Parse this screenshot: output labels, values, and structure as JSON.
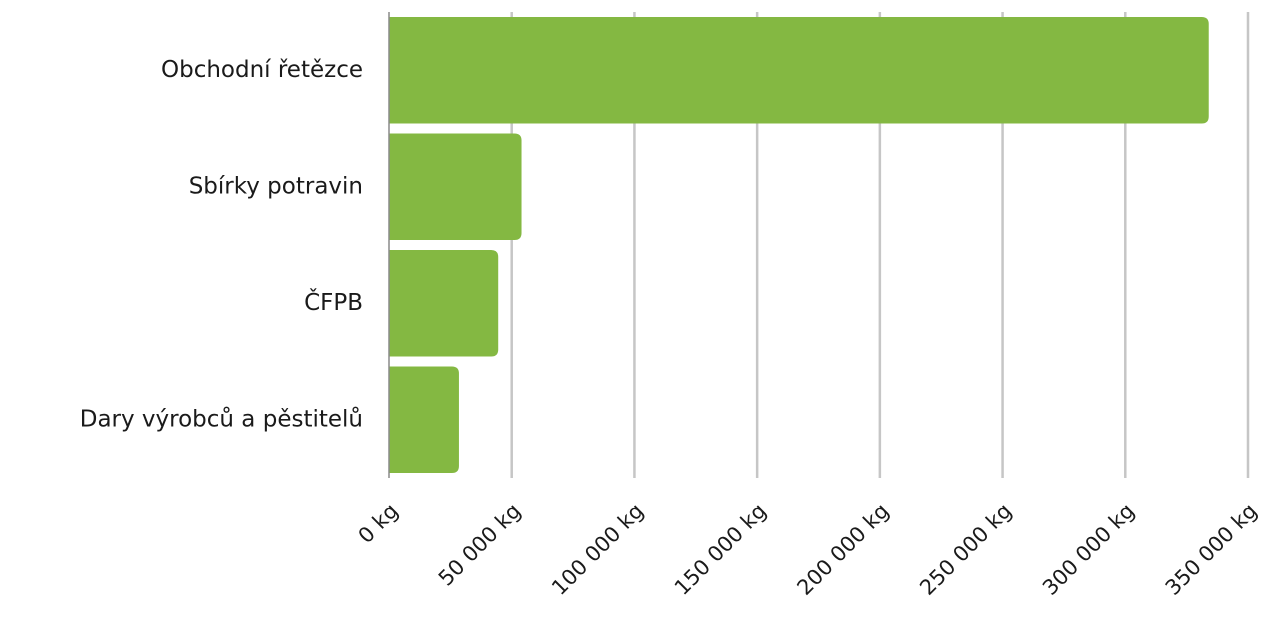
{
  "chart_data": {
    "type": "bar",
    "orientation": "horizontal",
    "categories": [
      "Obchodní řetězce",
      "Sbírky potravin",
      "ČFPB",
      "Dary výrobců a pěstitelů"
    ],
    "values": [
      334000,
      54000,
      44500,
      28500
    ],
    "title": "",
    "xlabel": "",
    "ylabel": "",
    "xlim": [
      0,
      350000
    ],
    "x_ticks": [
      0,
      50000,
      100000,
      150000,
      200000,
      250000,
      300000,
      350000
    ],
    "x_tick_labels": [
      "0 kg",
      "50 000 kg",
      "100 000 kg",
      "150 000 kg",
      "200 000 kg",
      "250 000 kg",
      "300 000 kg",
      "350 000 kg"
    ],
    "grid": "vertical",
    "legend": "none",
    "colors": {
      "bar": "#84b842",
      "grid": "#c6c6c6",
      "axis": "#8a8a8a"
    }
  }
}
